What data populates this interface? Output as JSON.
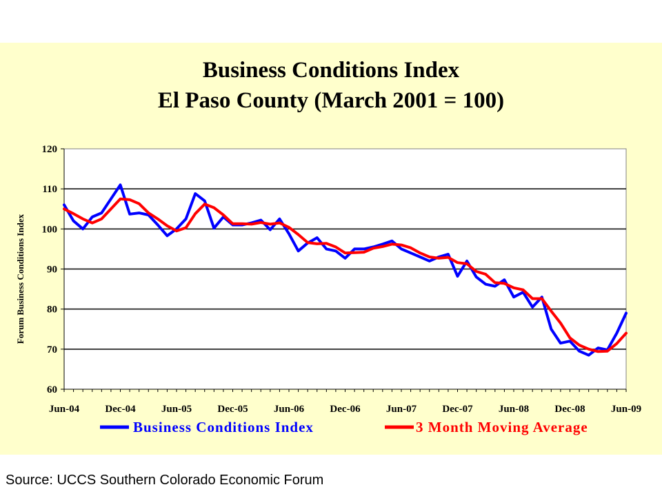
{
  "chart_data": {
    "type": "line",
    "title": "Business Conditions Index",
    "subtitle": "El Paso County (March 2001 = 100)",
    "xlabel": "",
    "ylabel": "Forum Business Conditions Index",
    "ylim": [
      60,
      120
    ],
    "yticks": [
      "120",
      "110",
      "100",
      "90",
      "80",
      "70",
      "60"
    ],
    "xtick_labels": [
      "Jun-04",
      "Dec-04",
      "Jun-05",
      "Dec-05",
      "Jun-06",
      "Dec-06",
      "Jun-07",
      "Dec-07",
      "Jun-08",
      "Dec-08",
      "Jun-09"
    ],
    "grid": "horizontal",
    "legend_position": "bottom",
    "x": [
      "Jun-04",
      "Jul-04",
      "Aug-04",
      "Sep-04",
      "Oct-04",
      "Nov-04",
      "Dec-04",
      "Jan-05",
      "Feb-05",
      "Mar-05",
      "Apr-05",
      "May-05",
      "Jun-05",
      "Jul-05",
      "Aug-05",
      "Sep-05",
      "Oct-05",
      "Nov-05",
      "Dec-05",
      "Jan-06",
      "Feb-06",
      "Mar-06",
      "Apr-06",
      "May-06",
      "Jun-06",
      "Jul-06",
      "Aug-06",
      "Sep-06",
      "Oct-06",
      "Nov-06",
      "Dec-06",
      "Jan-07",
      "Feb-07",
      "Mar-07",
      "Apr-07",
      "May-07",
      "Jun-07",
      "Jul-07",
      "Aug-07",
      "Sep-07",
      "Oct-07",
      "Nov-07",
      "Dec-07",
      "Jan-08",
      "Feb-08",
      "Mar-08",
      "Apr-08",
      "May-08",
      "Jun-08",
      "Jul-08",
      "Aug-08",
      "Sep-08",
      "Oct-08",
      "Nov-08",
      "Dec-08",
      "Jan-09",
      "Feb-09",
      "Mar-09",
      "Apr-09",
      "May-09",
      "Jun-09"
    ],
    "series": [
      {
        "name": "Business Conditions Index",
        "color": "#0000ff",
        "values": [
          106,
          102,
          100,
          103,
          104,
          107.5,
          111,
          103.7,
          104,
          103.5,
          101,
          98.3,
          100,
          102.5,
          108.8,
          107,
          100.2,
          103,
          101,
          101,
          101.5,
          102.2,
          99.8,
          102.5,
          98.8,
          94.5,
          96.5,
          97.8,
          95,
          94.5,
          92.7,
          95,
          95,
          95.5,
          96.2,
          97,
          95,
          94,
          93,
          92,
          93,
          93.7,
          88.2,
          92,
          88,
          86.2,
          85.7,
          87.3,
          83,
          84.2,
          80.5,
          83,
          75,
          71.5,
          72,
          69.5,
          68.5,
          70.3,
          69.8,
          74,
          79
        ]
      },
      {
        "name": "3 Month Moving Average",
        "color": "#ff0000",
        "values": [
          105,
          103.8,
          102.5,
          101.5,
          102.5,
          105,
          107.5,
          107.3,
          106.3,
          104,
          102.5,
          100.8,
          99.5,
          100.3,
          103.8,
          106.2,
          105.3,
          103.5,
          101.3,
          101.3,
          101.2,
          101.6,
          101.2,
          101.5,
          100.4,
          98.6,
          96.6,
          96.3,
          96.4,
          95.5,
          94,
          94.1,
          94.2,
          95.2,
          95.6,
          96.2,
          96,
          95.3,
          94,
          93,
          92.7,
          92.9,
          91.6,
          91.3,
          89.4,
          88.7,
          86.6,
          86.4,
          85.3,
          84.8,
          82.6,
          82.6,
          79.5,
          76.5,
          72.8,
          71,
          70,
          69.4,
          69.5,
          71.4,
          74
        ]
      }
    ]
  },
  "footer": {
    "source": "Source: UCCS Southern Colorado Economic Forum"
  }
}
